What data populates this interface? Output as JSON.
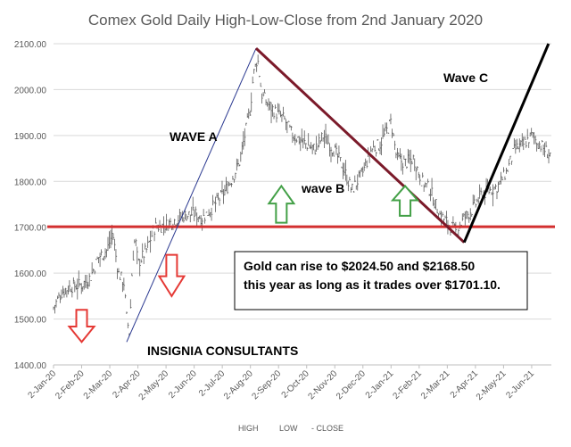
{
  "chart_data": {
    "type": "line",
    "title": "Comex Gold Daily High-Low-Close from 2nd January 2020",
    "y_ticks": [
      "2100.00",
      "2000.00",
      "1900.00",
      "1800.00",
      "1700.00",
      "1600.00",
      "1500.00",
      "1400.00"
    ],
    "y_tick_values": [
      2100,
      2000,
      1900,
      1800,
      1700,
      1600,
      1500,
      1400
    ],
    "ylim": [
      1400,
      2100
    ],
    "x_ticks": [
      "2-Jan-20",
      "2-Feb-20",
      "2-Mar-20",
      "2-Apr-20",
      "2-May-20",
      "2-Jun-20",
      "2-Jul-20",
      "2-Aug-20",
      "2-Sep-20",
      "2-Oct-20",
      "2-Nov-20",
      "2-Dec-20",
      "2-Jan-21",
      "2-Feb-21",
      "2-Mar-21",
      "2-Apr-21",
      "2-May-21",
      "2-Jun-21"
    ],
    "xlim_months": [
      0,
      17.7
    ],
    "legend": [
      "HIGH",
      "LOW",
      "- CLOSE"
    ],
    "series": {
      "close_path_months": [
        0,
        0.3,
        0.6,
        1.0,
        1.3,
        1.6,
        1.9,
        2.1,
        2.3,
        2.5,
        2.6,
        2.7,
        2.8,
        2.9,
        3.0,
        3.3,
        3.6,
        4.0,
        4.3,
        4.6,
        5.0,
        5.3,
        5.6,
        6.0,
        6.3,
        6.6,
        7.0,
        7.1,
        7.25,
        7.4,
        7.6,
        7.9,
        8.2,
        8.5,
        8.8,
        9.0,
        9.3,
        9.6,
        10.0,
        10.3,
        10.6,
        11.0,
        11.3,
        11.6,
        12.0,
        12.2,
        12.5,
        12.8,
        13.1,
        13.4,
        13.7,
        14.0,
        14.3,
        14.6,
        14.9,
        15.2,
        15.5,
        15.8,
        16.1,
        16.4,
        16.7,
        17.0,
        17.3,
        17.6
      ],
      "close_path_values": [
        1525,
        1560,
        1570,
        1575,
        1590,
        1635,
        1650,
        1690,
        1600,
        1580,
        1500,
        1470,
        1620,
        1680,
        1620,
        1650,
        1700,
        1705,
        1715,
        1725,
        1730,
        1720,
        1740,
        1770,
        1800,
        1840,
        1960,
        2030,
        2070,
        1990,
        1970,
        1950,
        1935,
        1900,
        1890,
        1880,
        1870,
        1900,
        1865,
        1830,
        1780,
        1820,
        1870,
        1880,
        1930,
        1850,
        1840,
        1850,
        1800,
        1780,
        1730,
        1710,
        1690,
        1720,
        1740,
        1770,
        1780,
        1790,
        1820,
        1870,
        1880,
        1900,
        1880,
        1860
      ]
    },
    "annotations": {
      "wave_a": "WAVE A",
      "wave_b": "wave B",
      "wave_c": "Wave C",
      "branding": "INSIGNIA CONSULTANTS",
      "box_line1": "Gold can rise to $2024.50 and $2168.50",
      "box_line2": "this year as long as it trades over $1701.10."
    },
    "support_level": 1701.1,
    "lines": {
      "wave_a_line": [
        [
          2.6,
          1450
        ],
        [
          7.2,
          2090
        ]
      ],
      "downtrend_line": [
        [
          7.2,
          2090
        ],
        [
          14.6,
          1667
        ]
      ],
      "wave_c_line": [
        [
          14.6,
          1667
        ],
        [
          17.6,
          2100
        ]
      ]
    },
    "arrows": [
      {
        "name": "red-down-arrow-1",
        "color": "#e53935",
        "dir": "down",
        "month": 1.0,
        "value_top": 1520,
        "value_bottom": 1450
      },
      {
        "name": "red-down-arrow-2",
        "color": "#e53935",
        "dir": "down",
        "month": 4.2,
        "value_top": 1640,
        "value_bottom": 1550
      },
      {
        "name": "green-up-arrow-1",
        "color": "#43a047",
        "dir": "up",
        "month": 8.1,
        "value_top": 1790,
        "value_bottom": 1710
      },
      {
        "name": "green-up-arrow-2",
        "color": "#43a047",
        "dir": "up",
        "month": 12.5,
        "value_top": 1790,
        "value_bottom": 1725
      }
    ],
    "colors": {
      "grid": "#d9d9d9",
      "bars": "#595959",
      "support": "#d32f2f",
      "downtrend": "#7b1a2a",
      "wave_a_line": "#2b3990",
      "wave_c_line": "#000000"
    }
  }
}
